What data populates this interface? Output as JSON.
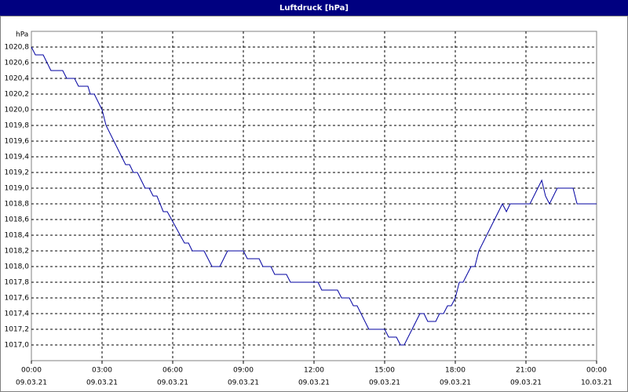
{
  "chart_data": {
    "type": "line",
    "title": "Luftdruck [hPa]",
    "y_label": "hPa",
    "x": [
      0,
      0.17,
      0.5,
      0.83,
      1.33,
      1.5,
      1.83,
      2,
      2.4,
      2.5,
      2.67,
      3,
      3.17,
      4,
      4.17,
      4.33,
      4.5,
      4.83,
      5,
      5.17,
      5.33,
      5.6,
      5.77,
      6.5,
      6.67,
      6.83,
      7.33,
      7.67,
      8,
      8.33,
      9,
      9.17,
      9.67,
      9.83,
      10.17,
      10.33,
      10.83,
      11,
      12.17,
      12.33,
      13,
      13.17,
      13.5,
      13.67,
      13.83,
      14.33,
      15,
      15.17,
      15.5,
      15.67,
      15.83,
      16.5,
      16.67,
      16.83,
      17.17,
      17.33,
      17.5,
      17.67,
      17.83,
      18,
      18.17,
      18.33,
      18.67,
      18.83,
      19,
      20,
      20.17,
      20.33,
      21.17,
      21.67,
      21.83,
      22,
      22.33,
      23,
      23.17,
      24
    ],
    "series": [
      {
        "name": "Luftdruck",
        "color": "#0000a0",
        "values": [
          1020.8,
          1020.7,
          1020.7,
          1020.5,
          1020.5,
          1020.4,
          1020.4,
          1020.3,
          1020.3,
          1020.2,
          1020.2,
          1020.0,
          1019.8,
          1019.3,
          1019.3,
          1019.2,
          1019.2,
          1019.0,
          1019.0,
          1018.9,
          1018.9,
          1018.7,
          1018.7,
          1018.3,
          1018.3,
          1018.2,
          1018.2,
          1018.0,
          1018.0,
          1018.2,
          1018.2,
          1018.1,
          1018.1,
          1018.0,
          1018.0,
          1017.9,
          1017.9,
          1017.8,
          1017.8,
          1017.7,
          1017.7,
          1017.6,
          1017.6,
          1017.5,
          1017.5,
          1017.2,
          1017.2,
          1017.1,
          1017.1,
          1017.0,
          1017.0,
          1017.4,
          1017.4,
          1017.3,
          1017.3,
          1017.4,
          1017.4,
          1017.5,
          1017.5,
          1017.6,
          1017.8,
          1017.8,
          1018.0,
          1018.0,
          1018.2,
          1018.8,
          1018.7,
          1018.8,
          1018.8,
          1019.1,
          1018.9,
          1018.8,
          1019.0,
          1019.0,
          1018.8,
          1018.8
        ]
      }
    ],
    "xlim": [
      0,
      24
    ],
    "xticks": [
      {
        "value": 0,
        "label": "00:00",
        "date": "09.03.21"
      },
      {
        "value": 3,
        "label": "03:00",
        "date": "09.03.21"
      },
      {
        "value": 6,
        "label": "06:00",
        "date": "09.03.21"
      },
      {
        "value": 9,
        "label": "09:00",
        "date": "09.03.21"
      },
      {
        "value": 12,
        "label": "12:00",
        "date": "09.03.21"
      },
      {
        "value": 15,
        "label": "15:00",
        "date": "09.03.21"
      },
      {
        "value": 18,
        "label": "18:00",
        "date": "09.03.21"
      },
      {
        "value": 21,
        "label": "21:00",
        "date": "09.03.21"
      },
      {
        "value": 24,
        "label": "00:00",
        "date": "10.03.21"
      }
    ],
    "ylim": [
      1016.8,
      1021.0
    ],
    "yticks": [
      {
        "value": 1017.0,
        "label": "1017,0"
      },
      {
        "value": 1017.2,
        "label": "1017,2"
      },
      {
        "value": 1017.4,
        "label": "1017,4"
      },
      {
        "value": 1017.6,
        "label": "1017,6"
      },
      {
        "value": 1017.8,
        "label": "1017,8"
      },
      {
        "value": 1018.0,
        "label": "1018,0"
      },
      {
        "value": 1018.2,
        "label": "1018,2"
      },
      {
        "value": 1018.4,
        "label": "1018,4"
      },
      {
        "value": 1018.6,
        "label": "1018,6"
      },
      {
        "value": 1018.8,
        "label": "1018,8"
      },
      {
        "value": 1019.0,
        "label": "1019,0"
      },
      {
        "value": 1019.2,
        "label": "1019,2"
      },
      {
        "value": 1019.4,
        "label": "1019,4"
      },
      {
        "value": 1019.6,
        "label": "1019,6"
      },
      {
        "value": 1019.8,
        "label": "1019,8"
      },
      {
        "value": 1020.0,
        "label": "1020,0"
      },
      {
        "value": 1020.2,
        "label": "1020,2"
      },
      {
        "value": 1020.4,
        "label": "1020,4"
      },
      {
        "value": 1020.6,
        "label": "1020,6"
      },
      {
        "value": 1020.8,
        "label": "1020,8"
      }
    ],
    "grid": true
  }
}
